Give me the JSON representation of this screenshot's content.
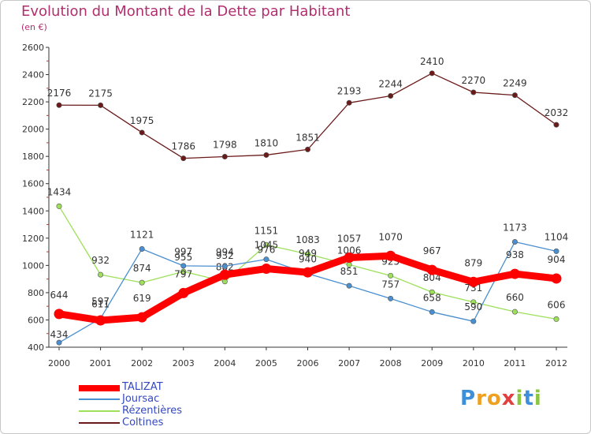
{
  "title": "Evolution du Montant de la Dette par Habitant",
  "subtitle": "(en €)",
  "logo": {
    "letters": [
      "P",
      "r",
      "o",
      "x",
      "i",
      "t",
      "i"
    ],
    "colors": [
      "#3c8fd8",
      "#f0a020",
      "#f0a020",
      "#e04040",
      "#8cc63f",
      "#3c8fd8",
      "#8cc63f"
    ]
  },
  "chart_data": {
    "type": "line",
    "title": "Evolution du Montant de la Dette par Habitant",
    "subtitle": "(en €)",
    "x": [
      "2000",
      "2001",
      "2002",
      "2003",
      "2004",
      "2005",
      "2006",
      "2007",
      "2008",
      "2009",
      "2010",
      "2011",
      "2012"
    ],
    "ylim": [
      400,
      2600
    ],
    "yticks": [
      400,
      600,
      800,
      1000,
      1200,
      1400,
      1600,
      1800,
      2000,
      2200,
      2400,
      2600
    ],
    "grid": false,
    "legend_position": "bottom-left",
    "series": [
      {
        "name": "TALIZAT",
        "color": "#ff0000",
        "values": [
          644,
          597,
          619,
          797,
          932,
          976,
          949,
          1057,
          1070,
          967,
          879,
          938,
          904
        ]
      },
      {
        "name": "Joursac",
        "color": "#4a8fcf",
        "values": [
          434,
          611,
          1121,
          997,
          994,
          1045,
          940,
          851,
          757,
          658,
          590,
          1173,
          1104
        ]
      },
      {
        "name": "Rézentières",
        "color": "#9de05a",
        "values": [
          1434,
          932,
          874,
          955,
          882,
          1151,
          1083,
          1006,
          925,
          804,
          731,
          660,
          606
        ]
      },
      {
        "name": "Coltines",
        "color": "#6b1a1a",
        "values": [
          2176,
          2175,
          1975,
          1786,
          1798,
          1810,
          1851,
          2193,
          2244,
          2410,
          2270,
          2249,
          2032
        ]
      }
    ]
  }
}
